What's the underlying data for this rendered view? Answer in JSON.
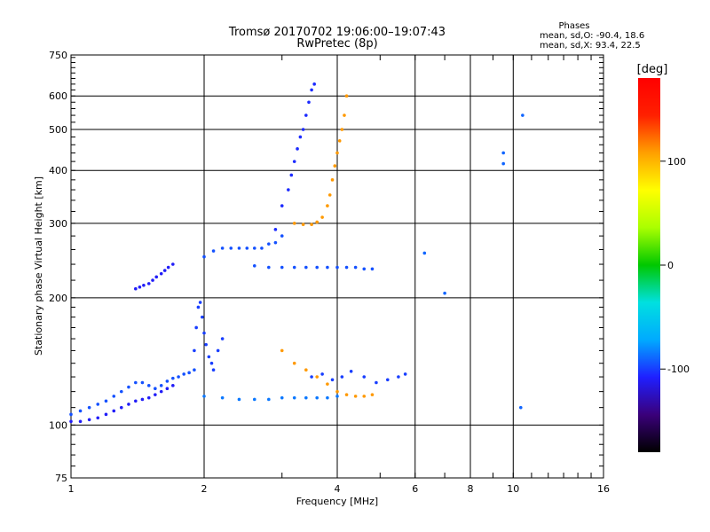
{
  "chart_data": {
    "type": "scatter",
    "title": "Tromsø 20170702 19:06:00–19:07:43",
    "subtitle": "RwPretec (8p)",
    "xlabel": "Frequency [MHz]",
    "ylabel": "Stationary phase Virtual Height [km]",
    "x_scale": "log",
    "y_scale": "log",
    "xlim": [
      1,
      16
    ],
    "ylim": [
      75,
      750
    ],
    "x_ticks": [
      1,
      2,
      4,
      6,
      8,
      10,
      16
    ],
    "y_ticks": [
      75,
      100,
      200,
      300,
      400,
      500,
      600,
      750
    ],
    "grid": true,
    "color_value": "phase_deg",
    "colorbar": {
      "label": "[deg]",
      "ticks": [
        100,
        0,
        -100
      ],
      "min": -180,
      "max": 180,
      "colors": [
        "#000000",
        "#3a007a",
        "#1f1fff",
        "#00aaff",
        "#00e0e0",
        "#00c800",
        "#aaff00",
        "#ffff00",
        "#ffa000",
        "#ff2000",
        "#ff0000"
      ]
    },
    "stats": {
      "header": "Phases",
      "line_o": "mean, sd,O: -90.4, 18.6",
      "line_x": "mean, sd,X:  93.4, 22.5"
    },
    "series": [
      {
        "x": [
          1.0,
          1.05,
          1.1,
          1.15,
          1.2,
          1.25,
          1.3,
          1.35,
          1.4,
          1.45,
          1.5,
          1.55,
          1.6,
          1.65,
          1.7,
          1.75,
          1.8,
          1.85,
          1.9
        ],
        "y": [
          106,
          108,
          110,
          112,
          114,
          117,
          120,
          123,
          126,
          126,
          124,
          122,
          124,
          127,
          129,
          130,
          132,
          133,
          135
        ],
        "phase": -95
      },
      {
        "x": [
          1.0,
          1.05,
          1.1,
          1.15,
          1.2,
          1.25,
          1.3,
          1.35,
          1.4,
          1.45,
          1.5,
          1.55,
          1.6,
          1.65,
          1.7
        ],
        "y": [
          102,
          102,
          103,
          104,
          106,
          108,
          110,
          112,
          114,
          115,
          116,
          118,
          120,
          122,
          124
        ],
        "phase": -110
      },
      {
        "x": [
          1.4,
          1.43,
          1.46,
          1.5,
          1.53,
          1.56,
          1.6,
          1.63,
          1.66,
          1.7
        ],
        "y": [
          210,
          212,
          214,
          216,
          220,
          224,
          228,
          232,
          236,
          240
        ],
        "phase": -110
      },
      {
        "x": [
          1.9,
          1.92,
          1.94,
          1.96,
          1.98,
          2.0,
          2.02,
          2.05,
          2.08,
          2.1,
          2.15,
          2.2
        ],
        "y": [
          150,
          170,
          190,
          195,
          180,
          165,
          155,
          145,
          140,
          135,
          150,
          160
        ],
        "phase": -100
      },
      {
        "x": [
          2.0,
          2.2,
          2.4,
          2.6,
          2.8,
          3.0,
          3.2,
          3.4,
          3.6,
          3.8,
          4.0
        ],
        "y": [
          117,
          116,
          115,
          115,
          115,
          116,
          116,
          116,
          116,
          116,
          117
        ],
        "phase": -85
      },
      {
        "x": [
          2.0,
          2.1,
          2.2,
          2.3,
          2.4,
          2.5,
          2.6,
          2.7,
          2.8,
          2.9,
          3.0
        ],
        "y": [
          250,
          258,
          262,
          262,
          262,
          262,
          262,
          262,
          268,
          270,
          280
        ],
        "phase": -95
      },
      {
        "x": [
          2.9,
          3.0,
          3.1,
          3.15,
          3.2,
          3.25,
          3.3,
          3.35,
          3.4,
          3.45,
          3.5,
          3.55
        ],
        "y": [
          290,
          330,
          360,
          390,
          420,
          450,
          480,
          500,
          540,
          580,
          620,
          640
        ],
        "phase": -105
      },
      {
        "x": [
          2.6,
          2.8,
          3.0,
          3.2,
          3.4,
          3.6,
          3.8,
          4.0,
          4.2,
          4.4,
          4.6,
          4.8
        ],
        "y": [
          238,
          236,
          236,
          236,
          236,
          236,
          236,
          236,
          236,
          236,
          234,
          234
        ],
        "phase": -95
      },
      {
        "x": [
          3.2,
          3.35,
          3.5,
          3.6,
          3.7,
          3.8,
          3.85,
          3.9,
          3.95,
          4.0,
          4.05,
          4.1,
          4.15,
          4.2
        ],
        "y": [
          300,
          298,
          298,
          302,
          310,
          330,
          350,
          380,
          410,
          440,
          470,
          500,
          540,
          600
        ],
        "phase": 110
      },
      {
        "x": [
          3.0,
          3.2,
          3.4,
          3.6,
          3.8,
          4.0,
          4.2,
          4.4,
          4.6,
          4.8
        ],
        "y": [
          150,
          140,
          135,
          130,
          125,
          120,
          118,
          117,
          117,
          118
        ],
        "phase": 110
      },
      {
        "x": [
          3.5,
          3.7,
          3.9,
          4.1,
          4.3,
          4.6,
          4.9,
          5.2,
          5.5,
          5.7
        ],
        "y": [
          130,
          132,
          128,
          130,
          134,
          130,
          126,
          128,
          130,
          132
        ],
        "phase": -100
      },
      {
        "x": [
          6.3,
          7.0,
          9.5,
          9.5,
          10.5,
          10.4
        ],
        "y": [
          255,
          205,
          440,
          415,
          540,
          110
        ],
        "phase": -90
      }
    ]
  }
}
